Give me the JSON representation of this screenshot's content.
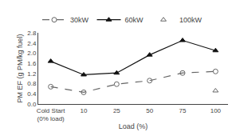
{
  "chart_data": {
    "type": "line",
    "categories": [
      "Cold Start\n(0% load)",
      "10",
      "25",
      "50",
      "75",
      "100"
    ],
    "series": [
      {
        "name": "30kW",
        "color": "#666666",
        "marker": "circle-open",
        "line_style": "dashed",
        "values": [
          0.68,
          0.46,
          0.78,
          0.92,
          1.22,
          1.28
        ]
      },
      {
        "name": "60kW",
        "color": "#111111",
        "marker": "triangle-up",
        "line_style": "solid",
        "values": [
          1.68,
          1.15,
          1.22,
          1.93,
          2.5,
          2.1
        ]
      },
      {
        "name": "100kW",
        "color": "#666666",
        "marker": "triangle-up-open",
        "line_style": "none",
        "values": [
          null,
          null,
          null,
          null,
          null,
          0.52
        ]
      }
    ],
    "xlabel": "Load (%)",
    "ylabel": "PM EF (g PM/kg fuel)",
    "ylim": [
      0.0,
      2.8
    ],
    "yticks": [
      {
        "value": 0,
        "label": "0.0"
      },
      0.4,
      0.8,
      1.2,
      1.6,
      {
        "value": 2,
        "label": "2.0"
      },
      2.4,
      2.8
    ],
    "grid": false,
    "legend": "upper left"
  }
}
